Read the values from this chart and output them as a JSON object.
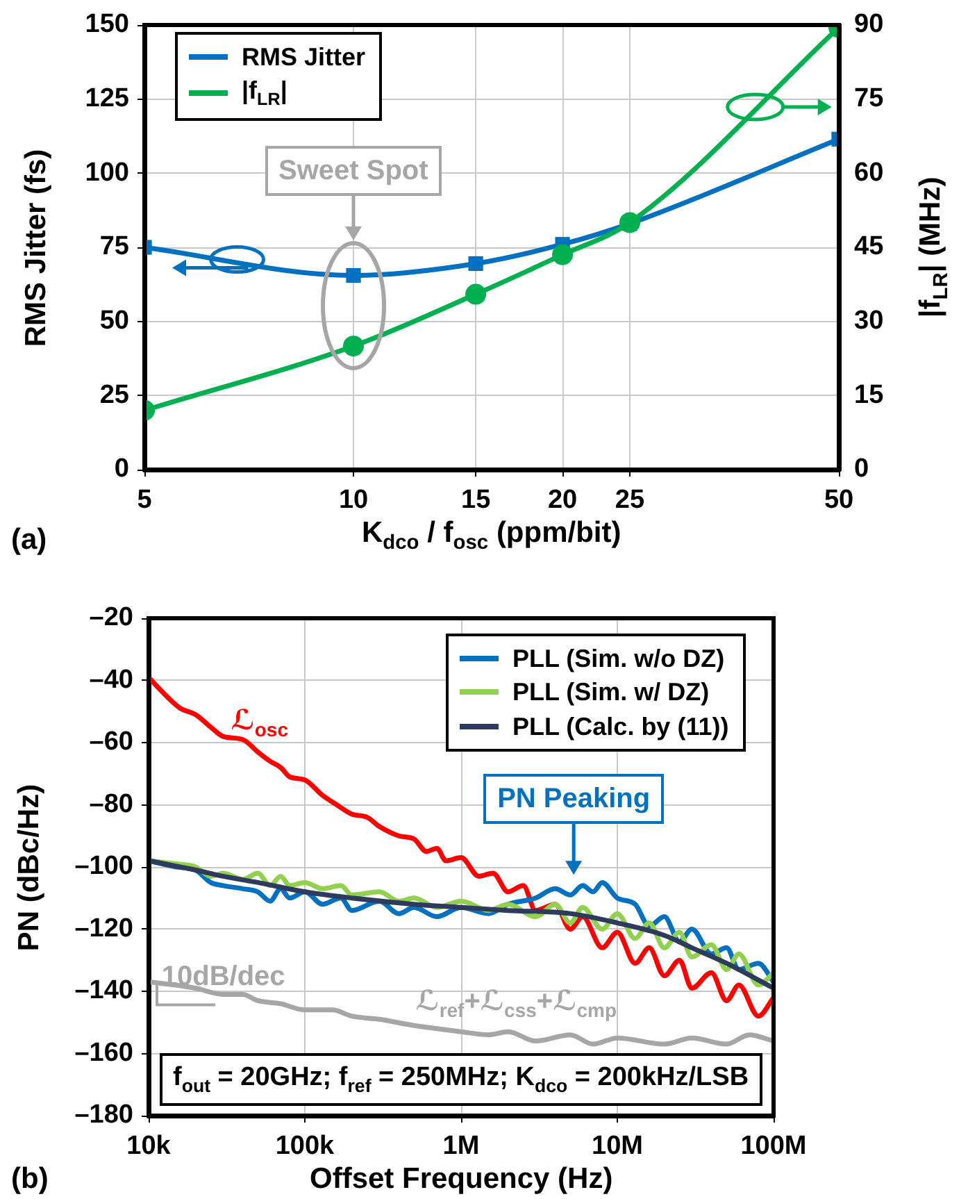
{
  "chart_data": [
    {
      "type": "line",
      "xlabel": "K$_{dco}$ / f$_{osc}$ (ppm/bit)",
      "ylabel": "RMS Jitter (fs)",
      "y2label": "|f$_{LR}$| (MHz)",
      "log": "x",
      "x": [
        5,
        10,
        15,
        20,
        25,
        50
      ],
      "xlim": [
        5,
        50
      ],
      "xticks": [
        5,
        10,
        15,
        20,
        25,
        50
      ],
      "ylim": [
        0,
        150
      ],
      "yticks": [
        0,
        25,
        50,
        75,
        100,
        125,
        150
      ],
      "y2lim": [
        0,
        90
      ],
      "y2ticks": [
        0,
        15,
        30,
        45,
        60,
        75,
        90
      ],
      "grid": true,
      "legend": "top left",
      "series": [
        {
          "name": "RMS Jitter",
          "color": "#0070c0",
          "marker": "square",
          "values": [
            75,
            65.5,
            69.5,
            76,
            83,
            111.5
          ]
        },
        {
          "name": "|f$_{LR}$|",
          "color": "#00b050",
          "marker": "circle",
          "axis": "y2",
          "values": [
            12,
            25,
            35.5,
            43.5,
            50,
            89.5
          ]
        }
      ],
      "annotations": [
        "Sweet Spot",
        "(a)"
      ]
    },
    {
      "type": "line",
      "xlabel": "Offset Frequency (Hz)",
      "ylabel": "PN (dBc/Hz)",
      "log": "x",
      "xlim": [
        10000,
        100000000
      ],
      "xticks": [
        {
          "value": 10000,
          "label": "10k"
        },
        {
          "value": 100000,
          "label": "100k"
        },
        {
          "value": 1000000,
          "label": "1M"
        },
        {
          "value": 10000000,
          "label": "10M"
        },
        {
          "value": 100000000,
          "label": "100M"
        }
      ],
      "ylim": [
        -180,
        -20
      ],
      "yticks": [
        {
          "value": -180,
          "label": "–180"
        },
        {
          "value": -160,
          "label": "–160"
        },
        {
          "value": -140,
          "label": "–140"
        },
        {
          "value": -120,
          "label": "–120"
        },
        {
          "value": -100,
          "label": "–100"
        },
        {
          "value": -80,
          "label": "–80"
        },
        {
          "value": -60,
          "label": "–60"
        },
        {
          "value": -40,
          "label": "–40"
        },
        {
          "value": -20,
          "label": "–20"
        }
      ],
      "grid": true,
      "legend": "top right",
      "marker": "none",
      "series": [
        {
          "color": "#a6a6a6",
          "x": [
            10000,
            15000,
            20000,
            30000,
            40000,
            50000,
            70000,
            100000,
            150000,
            200000,
            300000,
            500000,
            700000,
            1000000,
            1500000,
            2000000,
            3000000,
            5000000,
            7000000,
            10000000,
            20000000,
            30000000,
            50000000,
            70000000,
            100000000
          ],
          "values": [
            -137,
            -138,
            -139,
            -141,
            -141,
            -143,
            -144,
            -146,
            -146,
            -148,
            -149,
            -151,
            -152,
            -153,
            -154,
            -153,
            -156,
            -154,
            -157,
            -155,
            -157,
            -155,
            -157,
            -154,
            -156
          ]
        },
        {
          "color": "#ff0000",
          "x": [
            10000,
            13000,
            16000,
            20000,
            25000,
            30000,
            40000,
            50000,
            60000,
            70000,
            80000,
            100000,
            130000,
            160000,
            200000,
            250000,
            300000,
            400000,
            500000,
            600000,
            700000,
            800000,
            1000000,
            1300000,
            1600000,
            2000000,
            2500000,
            3000000,
            4000000,
            5000000,
            6000000,
            8000000,
            10000000,
            13000000,
            16000000,
            20000000,
            25000000,
            30000000,
            40000000,
            50000000,
            60000000,
            80000000,
            100000000
          ],
          "values": [
            -39,
            -45,
            -49,
            -51,
            -55,
            -58,
            -59,
            -63,
            -66,
            -68,
            -71,
            -72,
            -77,
            -80,
            -83,
            -84,
            -87,
            -90,
            -91,
            -95,
            -94,
            -98,
            -97,
            -103,
            -102,
            -108,
            -106,
            -114,
            -112,
            -120,
            -116,
            -126,
            -121,
            -131,
            -126,
            -135,
            -130,
            -139,
            -134,
            -143,
            -138,
            -148,
            -142
          ]
        },
        {
          "name": "PLL (Sim. w/o DZ)",
          "color": "#0070c0",
          "x": [
            10000,
            15000,
            20000,
            25000,
            30000,
            40000,
            50000,
            60000,
            70000,
            80000,
            100000,
            130000,
            170000,
            200000,
            300000,
            400000,
            500000,
            700000,
            1000000,
            1500000,
            2000000,
            3000000,
            4000000,
            5000000,
            6000000,
            7000000,
            8000000,
            10000000,
            13000000,
            16000000,
            20000000,
            25000000,
            30000000,
            40000000,
            50000000,
            60000000,
            80000000,
            100000000
          ],
          "values": [
            -98,
            -100,
            -101,
            -105,
            -106,
            -107,
            -108,
            -111,
            -107,
            -110,
            -108,
            -112,
            -110,
            -114,
            -111,
            -115,
            -113,
            -116,
            -113,
            -115,
            -112,
            -110,
            -107,
            -109,
            -106,
            -108,
            -105,
            -110,
            -112,
            -119,
            -116,
            -124,
            -120,
            -128,
            -126,
            -133,
            -131,
            -137
          ]
        },
        {
          "name": "PLL (Sim. w/ DZ)",
          "color": "#92d050",
          "x": [
            10000,
            15000,
            20000,
            25000,
            30000,
            40000,
            50000,
            60000,
            70000,
            80000,
            100000,
            130000,
            170000,
            200000,
            300000,
            400000,
            500000,
            700000,
            1000000,
            1500000,
            2000000,
            3000000,
            4000000,
            5000000,
            6000000,
            8000000,
            10000000,
            13000000,
            16000000,
            20000000,
            25000000,
            30000000,
            40000000,
            50000000,
            60000000,
            80000000,
            100000000
          ],
          "values": [
            -98,
            -99,
            -100,
            -103,
            -102,
            -104,
            -102,
            -106,
            -103,
            -106,
            -105,
            -107,
            -106,
            -109,
            -108,
            -111,
            -110,
            -113,
            -111,
            -114,
            -112,
            -116,
            -112,
            -118,
            -113,
            -120,
            -115,
            -123,
            -118,
            -126,
            -121,
            -129,
            -125,
            -133,
            -128,
            -138,
            -134
          ]
        },
        {
          "name": "PLL (Calc. by (11))",
          "color": "#2f3b5c",
          "x": [
            10000,
            20000,
            30000,
            50000,
            100000,
            200000,
            500000,
            1000000,
            2000000,
            5000000,
            10000000,
            20000000,
            30000000,
            50000000,
            100000000
          ],
          "values": [
            -98,
            -101,
            -103,
            -105,
            -108,
            -110,
            -112,
            -113,
            -114,
            -115,
            -118,
            -122,
            -126,
            -131,
            -139
          ]
        }
      ],
      "annotations": [
        {
          "text": "ℒ$_{osc}$",
          "x": 40000,
          "y": -59
        },
        {
          "text": "PN Peaking",
          "x": 7000000,
          "y": -107
        },
        {
          "text": "10dB/dec",
          "x": 20000,
          "y": -139
        },
        {
          "text": "ℒ$_{ref}$+ℒ$_{css}$+ℒ$_{cmp}$",
          "x": 3000000,
          "y": -155
        },
        "f$_{out}$ = 20GHz; f$_{ref}$ = 250MHz; K$_{dco}$ = 200kHz/LSB",
        "(b)"
      ]
    }
  ]
}
